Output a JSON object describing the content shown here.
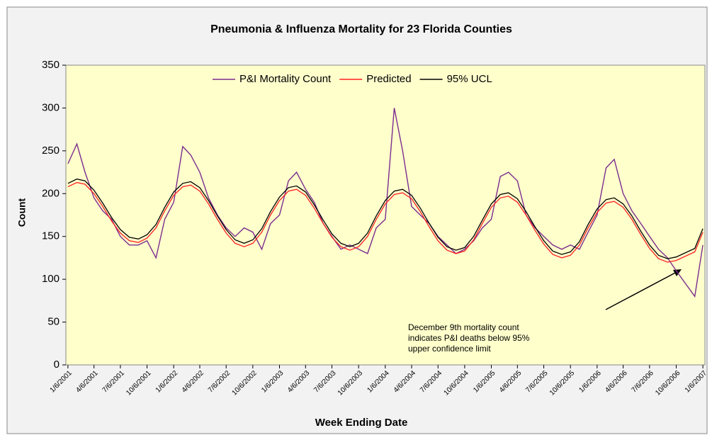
{
  "chart_data": {
    "type": "line",
    "title": "Pneumonia & Influenza Mortality for 23 Florida Counties",
    "xlabel": "Week Ending Date",
    "ylabel": "Count",
    "x": [
      "1/6/2001",
      "2/6/2001",
      "3/6/2001",
      "4/6/2001",
      "5/6/2001",
      "6/6/2001",
      "7/6/2001",
      "8/6/2001",
      "9/6/2001",
      "10/6/2001",
      "11/6/2001",
      "12/6/2001",
      "1/6/2002",
      "2/6/2002",
      "3/6/2002",
      "4/6/2002",
      "5/6/2002",
      "6/6/2002",
      "7/6/2002",
      "8/6/2002",
      "9/6/2002",
      "10/6/2002",
      "11/6/2002",
      "12/6/2002",
      "1/6/2003",
      "2/6/2003",
      "3/6/2003",
      "4/6/2003",
      "5/6/2003",
      "6/6/2003",
      "7/6/2003",
      "8/6/2003",
      "9/6/2003",
      "10/6/2003",
      "11/6/2003",
      "12/6/2003",
      "1/6/2004",
      "2/6/2004",
      "3/6/2004",
      "4/6/2004",
      "5/6/2004",
      "6/6/2004",
      "7/6/2004",
      "8/6/2004",
      "9/6/2004",
      "10/6/2004",
      "11/6/2004",
      "12/6/2004",
      "1/6/2005",
      "2/6/2005",
      "3/6/2005",
      "4/6/2005",
      "5/6/2005",
      "6/6/2005",
      "7/6/2005",
      "8/6/2005",
      "9/6/2005",
      "10/6/2005",
      "11/6/2005",
      "12/6/2005",
      "1/6/2006",
      "2/6/2006",
      "3/6/2006",
      "4/6/2006",
      "5/6/2006",
      "6/6/2006",
      "7/6/2006",
      "8/6/2006",
      "9/6/2006",
      "10/6/2006",
      "12/9/2006",
      "1/6/2007"
    ],
    "series": [
      {
        "name": "P&I Mortality Count",
        "color": "#7b2d8e",
        "values": [
          235,
          258,
          225,
          195,
          180,
          170,
          150,
          140,
          140,
          145,
          125,
          170,
          190,
          255,
          245,
          225,
          195,
          175,
          160,
          150,
          160,
          155,
          135,
          165,
          175,
          215,
          225,
          205,
          190,
          165,
          150,
          135,
          140,
          135,
          130,
          160,
          170,
          300,
          250,
          185,
          175,
          165,
          150,
          140,
          130,
          135,
          145,
          160,
          170,
          220,
          225,
          215,
          175,
          160,
          150,
          140,
          135,
          140,
          135,
          155,
          175,
          230,
          240,
          200,
          180,
          165,
          150,
          135,
          125,
          110,
          80,
          140
        ]
      },
      {
        "name": "Predicted",
        "color": "#ff2020",
        "values": [
          208,
          213,
          211,
          200,
          185,
          168,
          154,
          145,
          143,
          148,
          160,
          180,
          198,
          208,
          210,
          203,
          188,
          170,
          154,
          142,
          138,
          142,
          155,
          175,
          192,
          203,
          205,
          198,
          183,
          165,
          149,
          138,
          134,
          138,
          150,
          170,
          188,
          199,
          201,
          194,
          179,
          161,
          145,
          134,
          130,
          133,
          146,
          165,
          184,
          195,
          197,
          190,
          175,
          157,
          141,
          129,
          125,
          128,
          140,
          160,
          178,
          189,
          191,
          184,
          170,
          152,
          136,
          124,
          120,
          122,
          132,
          155
        ]
      },
      {
        "name": "95% UCL",
        "color": "#000000",
        "values": [
          212,
          217,
          215,
          204,
          189,
          172,
          158,
          149,
          147,
          152,
          164,
          184,
          202,
          212,
          214,
          207,
          192,
          174,
          158,
          146,
          142,
          146,
          159,
          179,
          196,
          207,
          209,
          202,
          187,
          169,
          153,
          142,
          138,
          142,
          154,
          174,
          192,
          203,
          205,
          198,
          183,
          165,
          149,
          138,
          134,
          137,
          150,
          169,
          188,
          199,
          201,
          194,
          179,
          161,
          145,
          133,
          129,
          132,
          144,
          164,
          182,
          193,
          195,
          188,
          174,
          156,
          140,
          128,
          124,
          126,
          136,
          159
        ]
      }
    ],
    "xlim": [
      "12/30/2000",
      "1/13/2007"
    ],
    "xticks": [
      "1/6/2001",
      "4/6/2001",
      "7/6/2001",
      "10/6/2001",
      "1/6/2002",
      "4/6/2002",
      "7/6/2002",
      "10/6/2002",
      "1/6/2003",
      "4/6/2003",
      "7/6/2003",
      "10/6/2003",
      "1/6/2004",
      "4/6/2004",
      "7/6/2004",
      "10/6/2004",
      "1/6/2005",
      "4/6/2005",
      "7/6/2005",
      "10/6/2005",
      "1/6/2006",
      "4/6/2006",
      "7/6/2006",
      "10/6/2006",
      "1/6/2007"
    ],
    "ylim": [
      0,
      350
    ],
    "yticks": [
      0,
      50,
      100,
      150,
      200,
      250,
      300,
      350
    ],
    "annotation": [
      "December 9th mortality count",
      "indicates P&I deaths below 95%",
      "upper confidence limit"
    ],
    "legend": "top"
  }
}
